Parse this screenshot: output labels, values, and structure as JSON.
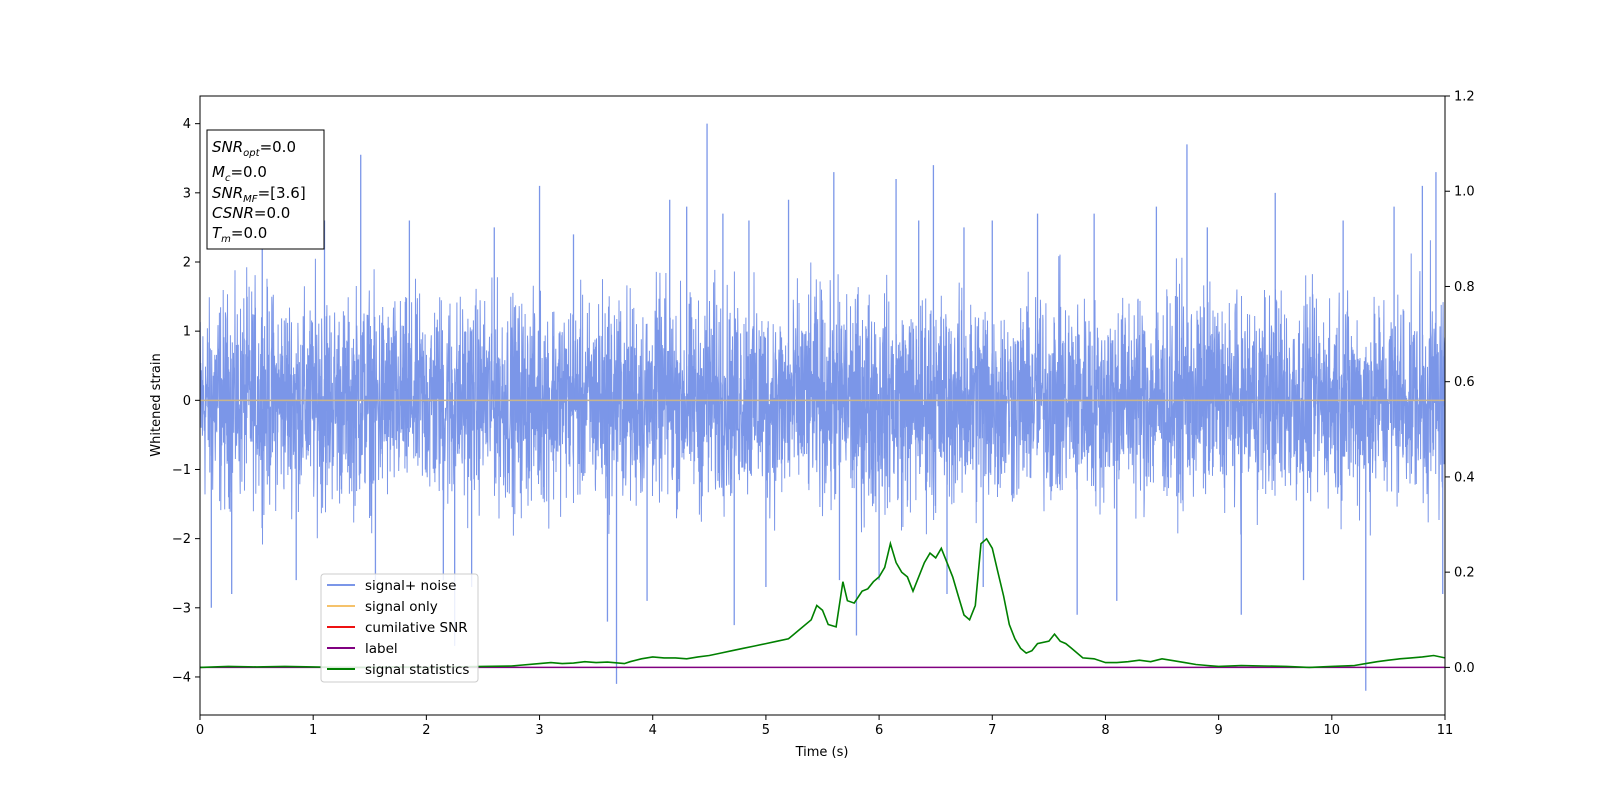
{
  "chart_data": {
    "type": "line",
    "title": "",
    "xlabel": "Time (s)",
    "ylabel": "Whitened strain",
    "xlim": [
      0,
      11
    ],
    "ylim": [
      -4.55,
      4.4
    ],
    "y2lim": [
      -0.1,
      1.2
    ],
    "xticks": [
      "0",
      "1",
      "2",
      "3",
      "4",
      "5",
      "6",
      "7",
      "8",
      "9",
      "10",
      "11"
    ],
    "yticks": [
      "4",
      "3",
      "2",
      "1",
      "0",
      "−1",
      "−2",
      "−3",
      "−4"
    ],
    "y2ticks": [
      "1.2",
      "1.0",
      "0.8",
      "0.6",
      "0.4",
      "0.2",
      "0.0"
    ],
    "grid": false,
    "legend_position": "lower-left",
    "info_box": {
      "lines": [
        {
          "base": "SNR",
          "sub": "opt",
          "rest": "=0.0"
        },
        {
          "base": "M",
          "sub": "c",
          "rest": "=0.0"
        },
        {
          "base": "SNR",
          "sub": "MF",
          "rest": "=[3.6]"
        },
        {
          "base": "CSNR",
          "sub": "",
          "rest": "=0.0"
        },
        {
          "base": "T",
          "sub": "m",
          "rest": "=0.0"
        }
      ]
    },
    "colors": {
      "signal_noise": "#7b96e8",
      "signal_only": "#f5c26b",
      "cumulative_snr": "#ee1111",
      "label": "#800080",
      "signal_statistics": "#008000",
      "zero_line": "#c8b48c"
    },
    "series": [
      {
        "name": "signal+ noise",
        "axis": "left",
        "envelope_pos": [
          2.0,
          2.2,
          2.1,
          2.4,
          2.3,
          2.2,
          2.3,
          2.1,
          2.5,
          2.1,
          2.0,
          2.3,
          2.2,
          2.1,
          2.0,
          2.1,
          2.2,
          2.3,
          2.1,
          2.2,
          2.1,
          2.2,
          2.1,
          2.0,
          2.3,
          2.2,
          2.1,
          2.0,
          2.4,
          2.3,
          2.2,
          2.1,
          2.3,
          2.2,
          2.1,
          2.0,
          2.4,
          2.2,
          2.3,
          2.2,
          2.1,
          2.0,
          2.2,
          2.3,
          2.1,
          2.4,
          2.2,
          2.3,
          2.2,
          2.1,
          2.0,
          2.3,
          2.2,
          2.1,
          2.2,
          2.4,
          2.1,
          2.0,
          2.2,
          2.3,
          2.4,
          2.2,
          2.1,
          2.0,
          2.3,
          2.2,
          2.4,
          2.1,
          2.2,
          2.3,
          2.2,
          2.3,
          2.1,
          2.0,
          2.2,
          2.4,
          2.3,
          2.2,
          2.1,
          2.0,
          2.3,
          2.2,
          2.1,
          2.2,
          2.3,
          2.2,
          2.4,
          2.5
        ],
        "envelope_neg": [
          -2.2,
          -2.3,
          -2.1,
          -2.0,
          -2.2,
          -2.1,
          -2.0,
          -2.2,
          -2.3,
          -2.1,
          -2.2,
          -2.1,
          -2.3,
          -2.2,
          -2.1,
          -2.0,
          -2.2,
          -2.4,
          -2.2,
          -2.1,
          -2.0,
          -2.2,
          -2.3,
          -2.1,
          -2.2,
          -2.0,
          -2.1,
          -2.2,
          -2.3,
          -2.1,
          -2.2,
          -2.1,
          -2.0,
          -2.2,
          -2.1,
          -2.3,
          -2.2,
          -2.1,
          -2.0,
          -2.2,
          -2.3,
          -2.4,
          -2.2,
          -2.1,
          -2.3,
          -2.2,
          -2.4,
          -2.3,
          -2.2,
          -2.5,
          -2.3,
          -2.4,
          -2.3,
          -2.2,
          -2.4,
          -2.3,
          -2.1,
          -2.2,
          -2.0,
          -2.1,
          -2.2,
          -2.1,
          -2.0,
          -2.2,
          -2.1,
          -2.0,
          -2.2,
          -2.1,
          -2.3,
          -2.2,
          -2.1,
          -2.0,
          -2.2,
          -2.1,
          -2.2,
          -2.0,
          -2.1,
          -2.2,
          -2.1,
          -2.0,
          -2.2,
          -2.1,
          -2.3,
          -2.2,
          -2.1,
          -2.0,
          -2.2,
          -2.4
        ],
        "spikes": [
          [
            0.1,
            -3.0
          ],
          [
            0.28,
            -2.8
          ],
          [
            0.55,
            2.8
          ],
          [
            0.85,
            -2.6
          ],
          [
            1.1,
            2.6
          ],
          [
            1.42,
            3.55
          ],
          [
            1.55,
            -2.6
          ],
          [
            1.85,
            2.6
          ],
          [
            2.15,
            -2.6
          ],
          [
            2.25,
            -3.55
          ],
          [
            2.4,
            -2.7
          ],
          [
            2.6,
            2.5
          ],
          [
            3.0,
            3.1
          ],
          [
            3.3,
            2.4
          ],
          [
            3.6,
            -3.2
          ],
          [
            3.68,
            -4.1
          ],
          [
            3.95,
            -2.9
          ],
          [
            4.15,
            2.9
          ],
          [
            4.3,
            2.8
          ],
          [
            4.48,
            4.0
          ],
          [
            4.62,
            2.7
          ],
          [
            4.72,
            -3.25
          ],
          [
            4.85,
            2.6
          ],
          [
            5.0,
            -2.7
          ],
          [
            5.2,
            2.9
          ],
          [
            5.6,
            3.3
          ],
          [
            5.65,
            -2.6
          ],
          [
            5.8,
            -3.4
          ],
          [
            6.0,
            -2.6
          ],
          [
            6.15,
            3.2
          ],
          [
            6.35,
            2.6
          ],
          [
            6.48,
            3.4
          ],
          [
            6.6,
            -2.8
          ],
          [
            6.75,
            2.5
          ],
          [
            6.92,
            -2.7
          ],
          [
            7.0,
            2.6
          ],
          [
            7.4,
            2.7
          ],
          [
            7.75,
            -3.1
          ],
          [
            7.9,
            2.7
          ],
          [
            8.1,
            -2.9
          ],
          [
            8.45,
            2.8
          ],
          [
            8.72,
            3.7
          ],
          [
            8.9,
            2.5
          ],
          [
            9.2,
            -3.1
          ],
          [
            9.5,
            3.0
          ],
          [
            9.75,
            -2.6
          ],
          [
            10.1,
            2.6
          ],
          [
            10.3,
            -4.2
          ],
          [
            10.55,
            2.8
          ],
          [
            10.8,
            3.1
          ],
          [
            10.92,
            3.3
          ],
          [
            10.98,
            -2.8
          ]
        ]
      },
      {
        "name": "signal only",
        "axis": "left",
        "x": [
          0,
          11
        ],
        "y": [
          0,
          0
        ]
      },
      {
        "name": "cumilative SNR",
        "axis": "right",
        "x": [],
        "y": []
      },
      {
        "name": "label",
        "axis": "right",
        "x": [
          0,
          11
        ],
        "y": [
          0.0,
          0.0
        ]
      },
      {
        "name": "signal statistics",
        "axis": "right",
        "x": [
          0,
          0.25,
          0.5,
          0.75,
          1,
          1.25,
          1.5,
          1.75,
          2,
          2.25,
          2.5,
          2.75,
          3,
          3.1,
          3.2,
          3.3,
          3.4,
          3.5,
          3.6,
          3.7,
          3.75,
          3.8,
          3.9,
          4.0,
          4.1,
          4.2,
          4.3,
          4.4,
          4.5,
          4.6,
          4.7,
          4.8,
          4.9,
          5.0,
          5.1,
          5.2,
          5.3,
          5.4,
          5.45,
          5.5,
          5.55,
          5.62,
          5.68,
          5.72,
          5.78,
          5.85,
          5.9,
          5.95,
          6.0,
          6.05,
          6.1,
          6.15,
          6.2,
          6.25,
          6.3,
          6.4,
          6.45,
          6.5,
          6.55,
          6.6,
          6.65,
          6.7,
          6.75,
          6.8,
          6.85,
          6.9,
          6.95,
          7.0,
          7.05,
          7.1,
          7.15,
          7.2,
          7.25,
          7.3,
          7.35,
          7.4,
          7.5,
          7.55,
          7.6,
          7.65,
          7.7,
          7.8,
          7.9,
          8.0,
          8.1,
          8.2,
          8.3,
          8.4,
          8.5,
          8.6,
          8.7,
          8.8,
          8.9,
          9.0,
          9.2,
          9.4,
          9.6,
          9.8,
          10.0,
          10.2,
          10.3,
          10.4,
          10.5,
          10.6,
          10.7,
          10.8,
          10.9,
          11.0
        ],
        "y": [
          0.0,
          0.002,
          0.001,
          0.002,
          0.001,
          0.0,
          0.0,
          0.001,
          0.0,
          0.001,
          0.002,
          0.003,
          0.008,
          0.01,
          0.008,
          0.009,
          0.012,
          0.01,
          0.011,
          0.009,
          0.008,
          0.012,
          0.018,
          0.022,
          0.02,
          0.02,
          0.018,
          0.022,
          0.025,
          0.03,
          0.035,
          0.04,
          0.045,
          0.05,
          0.055,
          0.06,
          0.08,
          0.1,
          0.13,
          0.12,
          0.09,
          0.085,
          0.18,
          0.14,
          0.135,
          0.16,
          0.165,
          0.18,
          0.19,
          0.21,
          0.26,
          0.22,
          0.2,
          0.19,
          0.16,
          0.22,
          0.24,
          0.23,
          0.25,
          0.22,
          0.19,
          0.15,
          0.11,
          0.1,
          0.13,
          0.26,
          0.27,
          0.25,
          0.2,
          0.15,
          0.09,
          0.06,
          0.04,
          0.03,
          0.035,
          0.05,
          0.055,
          0.07,
          0.055,
          0.05,
          0.04,
          0.02,
          0.018,
          0.01,
          0.01,
          0.012,
          0.015,
          0.012,
          0.018,
          0.014,
          0.01,
          0.006,
          0.004,
          0.002,
          0.004,
          0.003,
          0.002,
          0.0,
          0.002,
          0.004,
          0.008,
          0.012,
          0.015,
          0.018,
          0.02,
          0.022,
          0.025,
          0.02
        ]
      }
    ]
  }
}
